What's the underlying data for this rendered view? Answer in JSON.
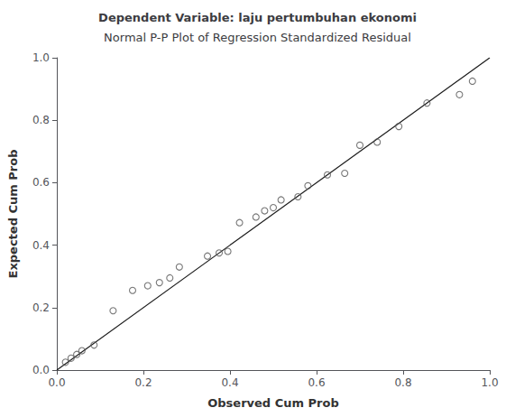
{
  "chart_data": {
    "type": "scatter",
    "title": "Normal P-P Plot of Regression Standardized Residual",
    "subtitle": "Dependent Variable: laju pertumbuhan ekonomi",
    "xlabel": "Observed Cum Prob",
    "ylabel": "Expected Cum Prob",
    "xlim": [
      0.0,
      1.0
    ],
    "ylim": [
      0.0,
      1.0
    ],
    "xticks": [
      {
        "value": 0.0,
        "label": "0.0"
      },
      0.2,
      0.4,
      0.6,
      0.8,
      {
        "value": 1.0,
        "label": "1.0"
      }
    ],
    "yticks": [
      {
        "value": 0.0,
        "label": "0.0"
      },
      0.2,
      0.4,
      0.6,
      0.8,
      {
        "value": 1.0,
        "label": "1.0"
      }
    ],
    "grid": false,
    "series": [
      {
        "type": "line",
        "color": "#1a1a1a",
        "line_style": "solid",
        "x": [
          0,
          1
        ],
        "values": [
          0,
          1
        ]
      },
      {
        "type": "scatter",
        "color": "#555555",
        "marker": "open circle",
        "x": [
          0.02,
          0.033,
          0.046,
          0.058,
          0.086,
          0.13,
          0.175,
          0.21,
          0.237,
          0.261,
          0.283,
          0.348,
          0.375,
          0.395,
          0.422,
          0.46,
          0.48,
          0.5,
          0.518,
          0.557,
          0.58,
          0.625,
          0.665,
          0.7,
          0.74,
          0.79,
          0.855,
          0.93,
          0.96
        ],
        "values": [
          0.025,
          0.038,
          0.05,
          0.062,
          0.08,
          0.19,
          0.255,
          0.27,
          0.28,
          0.295,
          0.33,
          0.365,
          0.375,
          0.38,
          0.472,
          0.49,
          0.51,
          0.52,
          0.545,
          0.555,
          0.59,
          0.625,
          0.63,
          0.72,
          0.73,
          0.78,
          0.855,
          0.882,
          0.925
        ]
      }
    ]
  }
}
